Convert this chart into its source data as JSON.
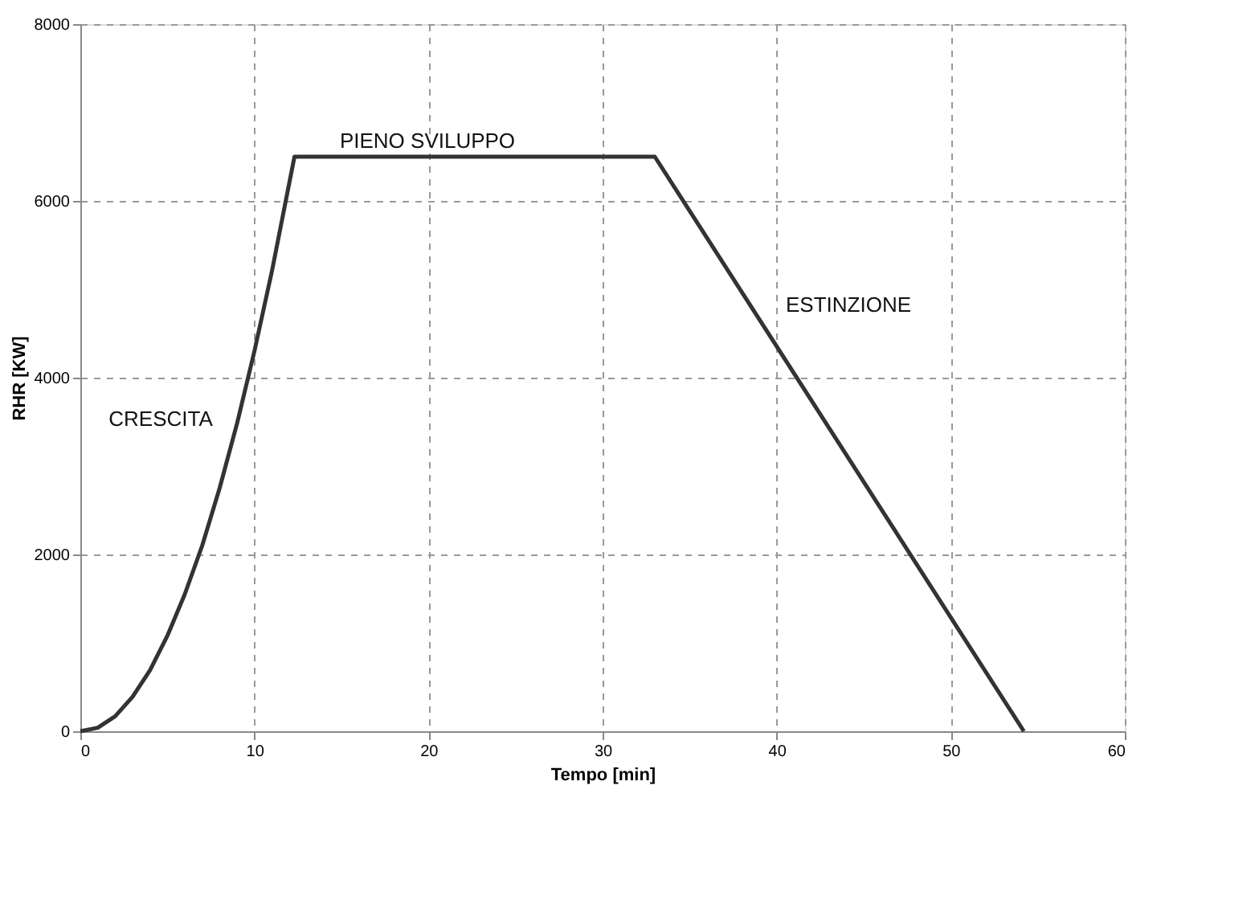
{
  "chart_data": {
    "type": "line",
    "xlabel": "Tempo [min]",
    "ylabel": "RHR [KW]",
    "x": [
      0,
      1,
      2,
      3,
      4,
      5,
      6,
      7,
      8,
      9,
      10,
      11,
      12.3,
      33,
      54.2
    ],
    "series": [
      {
        "color": "#333333",
        "values": [
          0,
          40,
          170,
          390,
          690,
          1080,
          1550,
          2100,
          2750,
          3480,
          4300,
          5200,
          6500,
          6500,
          0
        ]
      }
    ],
    "xlim": [
      0,
      60
    ],
    "xticks": [
      0,
      10,
      20,
      30,
      40,
      50,
      60
    ],
    "ylim": [
      0,
      8000
    ],
    "yticks": [
      0,
      2000,
      4000,
      6000,
      8000
    ],
    "grid": true,
    "marker": "none",
    "line_style": "solid",
    "annotations": [
      "CRESCITA",
      "PIENO SVILUPPO",
      "ESTINZIONE"
    ]
  }
}
